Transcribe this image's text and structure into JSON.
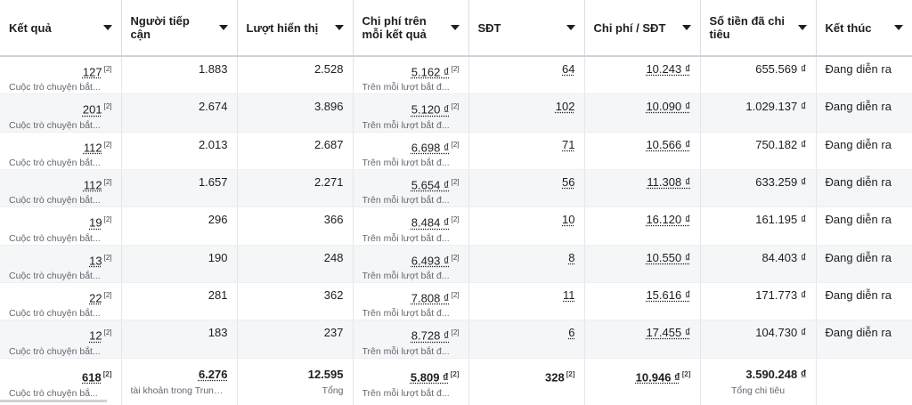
{
  "headers": [
    {
      "label": "Kết quả"
    },
    {
      "label": "Người tiếp cận"
    },
    {
      "label": "Lượt hiển thị"
    },
    {
      "label": "Chi phí trên mỗi kết quả"
    },
    {
      "label": "SĐT"
    },
    {
      "label": "Chi phí / SĐT"
    },
    {
      "label": "Số tiền đã chi tiêu"
    },
    {
      "label": "Kết thúc"
    }
  ],
  "rows": [
    {
      "results": "127",
      "ref": "[2]",
      "results_sub": "Cuộc trò chuyện bắt...",
      "reach": "1.883",
      "impressions": "2.528",
      "cpr": "5.162 ₫",
      "cpr_ref": "[2]",
      "cpr_sub": "Trên mỗi lượt bắt đ...",
      "phone": "64",
      "cpp": "10.243 ₫",
      "spent": "655.569 ₫",
      "status": "Đang diễn ra"
    },
    {
      "results": "201",
      "ref": "[2]",
      "results_sub": "Cuộc trò chuyện bắt...",
      "reach": "2.674",
      "impressions": "3.896",
      "cpr": "5.120 ₫",
      "cpr_ref": "[2]",
      "cpr_sub": "Trên mỗi lượt bắt đ...",
      "phone": "102",
      "cpp": "10.090 ₫",
      "spent": "1.029.137 ₫",
      "status": "Đang diễn ra"
    },
    {
      "results": "112",
      "ref": "[2]",
      "results_sub": "Cuộc trò chuyện bắt...",
      "reach": "2.013",
      "impressions": "2.687",
      "cpr": "6.698 ₫",
      "cpr_ref": "[2]",
      "cpr_sub": "Trên mỗi lượt bắt đ...",
      "phone": "71",
      "cpp": "10.566 ₫",
      "spent": "750.182 ₫",
      "status": "Đang diễn ra"
    },
    {
      "results": "112",
      "ref": "[2]",
      "results_sub": "Cuộc trò chuyện bắt...",
      "reach": "1.657",
      "impressions": "2.271",
      "cpr": "5.654 ₫",
      "cpr_ref": "[2]",
      "cpr_sub": "Trên mỗi lượt bắt đ...",
      "phone": "56",
      "cpp": "11.308 ₫",
      "spent": "633.259 ₫",
      "status": "Đang diễn ra"
    },
    {
      "results": "19",
      "ref": "[2]",
      "results_sub": "Cuộc trò chuyện bắt...",
      "reach": "296",
      "impressions": "366",
      "cpr": "8.484 ₫",
      "cpr_ref": "[2]",
      "cpr_sub": "Trên mỗi lượt bắt đ...",
      "phone": "10",
      "cpp": "16.120 ₫",
      "spent": "161.195 ₫",
      "status": "Đang diễn ra"
    },
    {
      "results": "13",
      "ref": "[2]",
      "results_sub": "Cuộc trò chuyện bắt...",
      "reach": "190",
      "impressions": "248",
      "cpr": "6.493 ₫",
      "cpr_ref": "[2]",
      "cpr_sub": "Trên mỗi lượt bắt đ...",
      "phone": "8",
      "cpp": "10.550 ₫",
      "spent": "84.403 ₫",
      "status": "Đang diễn ra"
    },
    {
      "results": "22",
      "ref": "[2]",
      "results_sub": "Cuộc trò chuyện bắt...",
      "reach": "281",
      "impressions": "362",
      "cpr": "7.808 ₫",
      "cpr_ref": "[2]",
      "cpr_sub": "Trên mỗi lượt bắt đ...",
      "phone": "11",
      "cpp": "15.616 ₫",
      "spent": "171.773 ₫",
      "status": "Đang diễn ra"
    },
    {
      "results": "12",
      "ref": "[2]",
      "results_sub": "Cuộc trò chuyện bắt...",
      "reach": "183",
      "impressions": "237",
      "cpr": "8.728 ₫",
      "cpr_ref": "[2]",
      "cpr_sub": "Trên mỗi lượt bắt đ...",
      "phone": "6",
      "cpp": "17.455 ₫",
      "spent": "104.730 ₫",
      "status": "Đang diễn ra"
    }
  ],
  "totals": {
    "results": "618",
    "results_ref": "[2]",
    "results_sub": "Cuộc trò chuyện bắ...",
    "reach": "6.276",
    "reach_sub": "tài khoản trong Trung t...",
    "impressions": "12.595",
    "impressions_sub": "Tổng",
    "cpr": "5.809 ₫",
    "cpr_ref": "[2]",
    "cpr_sub": "Trên mỗi lượt bắt đ...",
    "phone": "328",
    "phone_ref": "[2]",
    "cpp": "10.946 ₫",
    "cpp_ref": "[2]",
    "spent": "3.590.248 ₫",
    "spent_sub": "Tổng chi tiêu"
  }
}
